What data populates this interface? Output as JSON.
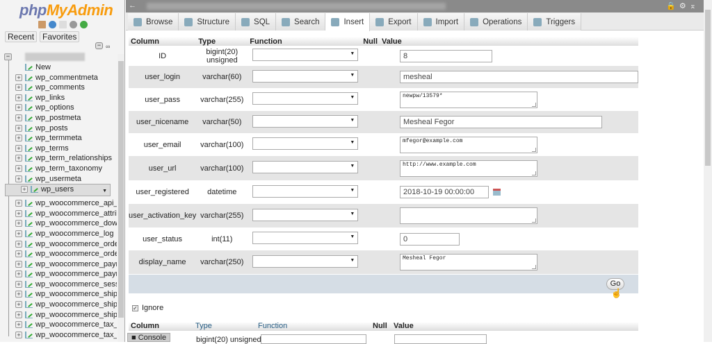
{
  "sidebar": {
    "logo_a": "php",
    "logo_b": "MyAdmin",
    "recent": "Recent",
    "favorites": "Favorites",
    "new": "New",
    "tables": [
      "wp_commentmeta",
      "wp_comments",
      "wp_links",
      "wp_options",
      "wp_postmeta",
      "wp_posts",
      "wp_termmeta",
      "wp_terms",
      "wp_term_relationships",
      "wp_term_taxonomy",
      "wp_usermeta",
      "wp_users",
      "wp_woocommerce_api_keys",
      "wp_woocommerce_attribute_taxonomies",
      "wp_woocommerce_downloadable_product_permissions",
      "wp_woocommerce_log",
      "wp_woocommerce_order_itemmeta",
      "wp_woocommerce_order_items",
      "wp_woocommerce_payment_tokenmeta",
      "wp_woocommerce_payment_tokens",
      "wp_woocommerce_sessions",
      "wp_woocommerce_shipping_zone_locations",
      "wp_woocommerce_shipping_zone_methods",
      "wp_woocommerce_shipping_zones",
      "wp_woocommerce_tax_rate_locations",
      "wp_woocommerce_tax_rates"
    ],
    "selected": "wp_users"
  },
  "tabs": [
    "Browse",
    "Structure",
    "SQL",
    "Search",
    "Insert",
    "Export",
    "Import",
    "Operations",
    "Triggers"
  ],
  "active_tab": "Insert",
  "headers": {
    "column": "Column",
    "type": "Type",
    "function": "Function",
    "null": "Null",
    "value": "Value"
  },
  "rows": [
    {
      "column": "ID",
      "type": "bigint(20) unsigned",
      "value": "8",
      "kind": "input"
    },
    {
      "column": "user_login",
      "type": "varchar(60)",
      "value": "mesheal",
      "kind": "input"
    },
    {
      "column": "user_pass",
      "type": "varchar(255)",
      "value": "newpw/13579*",
      "kind": "textarea"
    },
    {
      "column": "user_nicename",
      "type": "varchar(50)",
      "value": "Mesheal Fegor",
      "kind": "input"
    },
    {
      "column": "user_email",
      "type": "varchar(100)",
      "value": "mfegor@example.com",
      "kind": "textarea"
    },
    {
      "column": "user_url",
      "type": "varchar(100)",
      "value": "http://www.example.com",
      "kind": "textarea"
    },
    {
      "column": "user_registered",
      "type": "datetime",
      "value": "2018-10-19 00:00:00",
      "kind": "date"
    },
    {
      "column": "user_activation_key",
      "type": "varchar(255)",
      "value": "",
      "kind": "textarea"
    },
    {
      "column": "user_status",
      "type": "int(11)",
      "value": "0",
      "kind": "input"
    },
    {
      "column": "display_name",
      "type": "varchar(250)",
      "value": "Mesheal Fegor",
      "kind": "textarea"
    }
  ],
  "go": "Go",
  "ignore": "Ignore",
  "console": "Console",
  "row2_first_type": "bigint(20) unsigned"
}
